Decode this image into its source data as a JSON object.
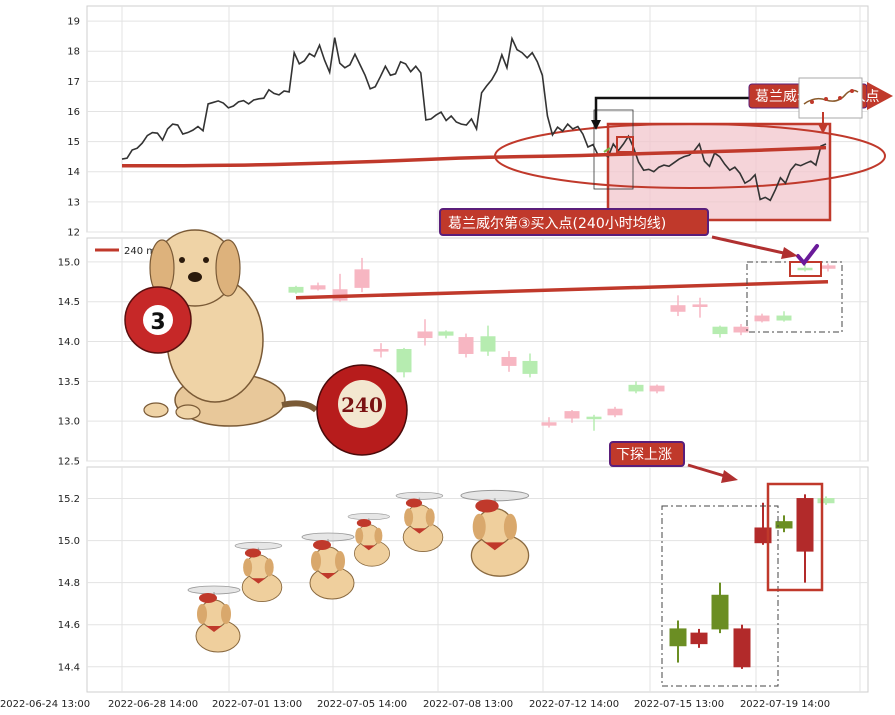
{
  "chart_data": [
    {
      "type": "line",
      "panel": "hourly-price",
      "ylim": [
        12,
        19.5
      ],
      "yticks": [
        12,
        13,
        14,
        15,
        16,
        17,
        18,
        19
      ],
      "close": [
        14.42,
        14.45,
        14.72,
        14.78,
        14.95,
        15.2,
        15.3,
        15.28,
        15.05,
        15.42,
        15.58,
        15.55,
        15.25,
        15.3,
        15.38,
        15.5,
        15.36,
        16.25,
        16.3,
        16.35,
        16.28,
        16.12,
        16.18,
        16.32,
        16.36,
        16.25,
        16.38,
        16.42,
        16.44,
        16.72,
        16.6,
        16.55,
        16.68,
        16.65,
        17.95,
        17.58,
        17.68,
        17.92,
        17.82,
        18.2,
        17.7,
        17.3,
        18.45,
        17.6,
        17.45,
        17.55,
        17.9,
        17.55,
        17.2,
        16.75,
        16.82,
        17.15,
        17.5,
        17.2,
        17.25,
        17.65,
        17.58,
        17.32,
        17.5,
        17.28,
        15.72,
        15.75,
        15.88,
        15.98,
        15.7,
        15.85,
        15.65,
        15.58,
        15.55,
        15.75,
        15.42,
        16.62,
        16.85,
        17.05,
        17.35,
        17.88,
        17.45,
        18.42,
        18.05,
        17.95,
        17.78,
        17.95,
        17.65,
        17.2,
        15.85,
        15.22,
        15.48,
        15.35,
        15.58,
        15.42,
        15.5,
        15.25,
        14.82,
        14.9,
        14.55,
        14.58,
        14.5,
        14.92,
        14.7,
        14.92,
        15.18,
        14.8,
        14.32,
        14.05,
        14.08,
        14.0,
        14.15,
        14.22,
        14.18,
        14.3,
        14.42,
        14.5,
        14.55,
        14.7,
        14.92,
        14.35,
        14.18,
        14.62,
        14.5,
        14.25,
        14.05,
        14.15,
        13.95,
        13.62,
        13.72,
        13.9,
        13.08,
        13.15,
        13.05,
        13.4,
        13.8,
        13.62,
        14.05,
        14.25,
        14.2,
        14.28,
        14.35,
        14.22,
        14.85,
        14.92
      ],
      "ma240": [
        14.2,
        14.2,
        14.2,
        14.21,
        14.22,
        14.24,
        14.27,
        14.3,
        14.33,
        14.37,
        14.41,
        14.45,
        14.48,
        14.5,
        14.52,
        14.54,
        14.57,
        14.6,
        14.63,
        14.66,
        14.69,
        14.72,
        14.76,
        14.8
      ]
    },
    {
      "type": "candlestick",
      "panel": "daily",
      "ylim": [
        12.5,
        15.3
      ],
      "yticks": [
        12.5,
        13.0,
        13.5,
        14.0,
        14.5,
        15.0
      ],
      "legend": "240 ma",
      "candles": [
        {
          "o": 14.62,
          "c": 14.68,
          "h": 14.7,
          "l": 14.6
        },
        {
          "o": 14.7,
          "c": 14.66,
          "h": 14.74,
          "l": 14.64
        },
        {
          "o": 14.65,
          "c": 14.52,
          "h": 14.85,
          "l": 14.5
        },
        {
          "o": 14.9,
          "c": 14.68,
          "h": 15.05,
          "l": 14.62
        },
        {
          "o": 13.9,
          "c": 13.88,
          "h": 13.98,
          "l": 13.8
        },
        {
          "o": 13.62,
          "c": 13.9,
          "h": 13.92,
          "l": 13.55
        },
        {
          "o": 14.12,
          "c": 14.05,
          "h": 14.28,
          "l": 13.95
        },
        {
          "o": 14.08,
          "c": 14.12,
          "h": 14.14,
          "l": 14.04
        },
        {
          "o": 14.05,
          "c": 13.85,
          "h": 14.1,
          "l": 13.8
        },
        {
          "o": 13.88,
          "c": 14.06,
          "h": 14.2,
          "l": 13.82
        },
        {
          "o": 13.8,
          "c": 13.7,
          "h": 13.88,
          "l": 13.62
        },
        {
          "o": 13.6,
          "c": 13.75,
          "h": 13.85,
          "l": 13.55
        },
        {
          "o": 12.98,
          "c": 12.95,
          "h": 13.05,
          "l": 12.92
        },
        {
          "o": 13.12,
          "c": 13.04,
          "h": 13.14,
          "l": 12.98
        },
        {
          "o": 13.05,
          "c": 13.05,
          "h": 13.08,
          "l": 12.88
        },
        {
          "o": 13.15,
          "c": 13.08,
          "h": 13.18,
          "l": 13.05
        },
        {
          "o": 13.38,
          "c": 13.45,
          "h": 13.5,
          "l": 13.35
        },
        {
          "o": 13.44,
          "c": 13.38,
          "h": 13.46,
          "l": 13.35
        },
        {
          "o": 14.45,
          "c": 14.38,
          "h": 14.58,
          "l": 14.32
        },
        {
          "o": 14.46,
          "c": 14.44,
          "h": 14.55,
          "l": 14.3
        },
        {
          "o": 14.1,
          "c": 14.18,
          "h": 14.2,
          "l": 14.05
        },
        {
          "o": 14.18,
          "c": 14.12,
          "h": 14.22,
          "l": 14.08
        },
        {
          "o": 14.32,
          "c": 14.26,
          "h": 14.35,
          "l": 14.24
        },
        {
          "o": 14.27,
          "c": 14.32,
          "h": 14.38,
          "l": 14.25
        },
        {
          "o": 14.92,
          "c": 14.92,
          "h": 14.98,
          "l": 14.88
        },
        {
          "o": 14.95,
          "c": 14.92,
          "h": 14.98,
          "l": 14.88
        }
      ],
      "ma240": [
        14.55,
        14.75
      ]
    },
    {
      "type": "candlestick",
      "panel": "intraday",
      "ylim": [
        14.28,
        15.35
      ],
      "yticks": [
        14.4,
        14.6,
        14.8,
        15.0,
        15.2
      ],
      "candles": [
        {
          "o": 14.5,
          "c": 14.58,
          "h": 14.62,
          "l": 14.42
        },
        {
          "o": 14.56,
          "c": 14.51,
          "h": 14.58,
          "l": 14.49
        },
        {
          "o": 14.58,
          "c": 14.74,
          "h": 14.8,
          "l": 14.56
        },
        {
          "o": 14.58,
          "c": 14.4,
          "h": 14.6,
          "l": 14.39
        },
        {
          "o": 15.06,
          "c": 14.99,
          "h": 15.18,
          "l": 14.98
        },
        {
          "o": 15.06,
          "c": 15.09,
          "h": 15.12,
          "l": 15.04
        },
        {
          "o": 15.2,
          "c": 14.95,
          "h": 15.22,
          "l": 14.8
        },
        {
          "o": 15.18,
          "c": 15.2,
          "h": 15.21,
          "l": 15.17
        }
      ]
    }
  ],
  "x_tick_labels": [
    "2022-06-24 13:00",
    "2022-06-28 14:00",
    "2022-07-01 13:00",
    "2022-07-05 14:00",
    "2022-07-08 13:00",
    "2022-07-12 14:00",
    "2022-07-15 13:00",
    "2022-07-19 14:00"
  ],
  "annotations": {
    "top_callout": "葛兰威尔第③买入点",
    "mid_callout": "葛兰威尔第③买入点(240小时均线)",
    "dip_rise": "下探上涨",
    "ball_three": "3",
    "ball_240": "240"
  },
  "colors": {
    "ma_line": "#c0392b",
    "up_soft": "#f7b6c2",
    "down_soft": "#b6ecb0",
    "up_strong": "#b22a2a",
    "down_strong": "#6b8e23",
    "highlight_fill": "#f2c6cc",
    "callout_border": "#5a1e7a",
    "callout_fill": "#c0392b"
  }
}
